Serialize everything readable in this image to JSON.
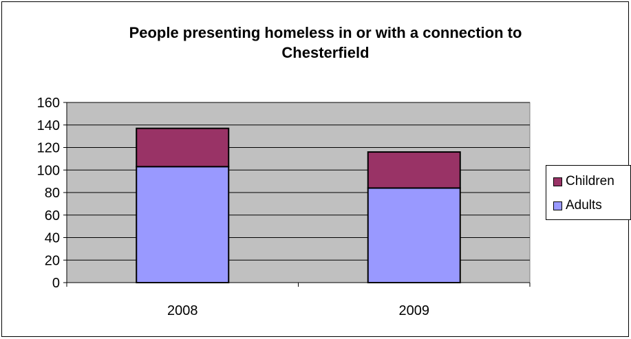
{
  "chart_data": {
    "type": "bar",
    "stacked": true,
    "title": [
      "People presenting homeless in or with a connection to",
      "Chesterfield"
    ],
    "categories": [
      "2008",
      "2009"
    ],
    "series": [
      {
        "name": "Adults",
        "values": [
          103,
          84
        ],
        "color": "#9999ff"
      },
      {
        "name": "Children",
        "values": [
          34,
          32
        ],
        "color": "#993366"
      }
    ],
    "ylim": [
      0,
      160
    ],
    "yticks": [
      0,
      20,
      40,
      60,
      80,
      100,
      120,
      140,
      160
    ],
    "grid": true,
    "plot_background": "#c0c0c0",
    "legend_position": "right",
    "legend_order": [
      "Children",
      "Adults"
    ]
  }
}
